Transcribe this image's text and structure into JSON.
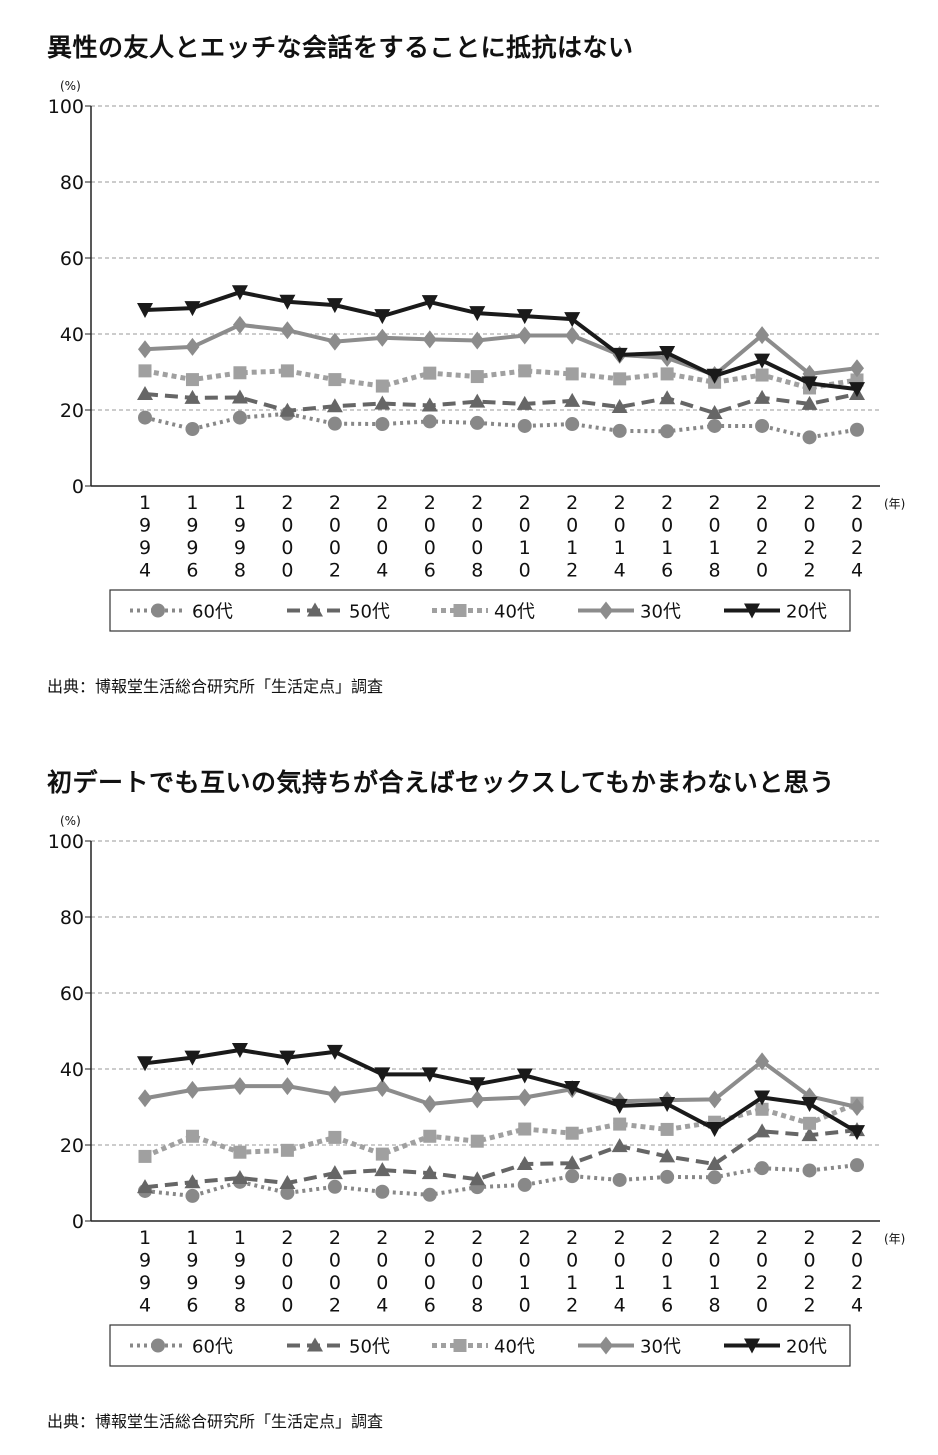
{
  "chart_data": [
    {
      "type": "line",
      "title": "異性の友人とエッチな会話をすることに抵抗はない",
      "ylabel": "(%)",
      "xlabel": "(年)",
      "ylim": [
        0,
        100
      ],
      "yticks": [
        0,
        20,
        40,
        60,
        80,
        100
      ],
      "grid": true,
      "legend": "bottom",
      "categories": [
        "1994",
        "1996",
        "1998",
        "2000",
        "2002",
        "2004",
        "2006",
        "2008",
        "2010",
        "2012",
        "2014",
        "2016",
        "2018",
        "2020",
        "2022",
        "2024"
      ],
      "series": [
        {
          "name": "60代",
          "marker": "circle",
          "style": "dotted",
          "color": "#888888",
          "values": [
            18,
            15,
            18,
            19,
            16.4,
            16.3,
            17,
            16.6,
            15.8,
            16.3,
            14.5,
            14.4,
            15.8,
            15.8,
            12.8,
            14.8
          ]
        },
        {
          "name": "50代",
          "marker": "triangle-up",
          "style": "dashed",
          "color": "#666666",
          "values": [
            24.2,
            23.2,
            23.3,
            19.8,
            21,
            21.7,
            21.2,
            22.2,
            21.6,
            22.4,
            20.8,
            23.1,
            19.2,
            23.2,
            21.6,
            24.2
          ]
        },
        {
          "name": "40代",
          "marker": "square",
          "style": "dotted-thick",
          "color": "#a0a0a0",
          "values": [
            30.3,
            28,
            29.8,
            30.3,
            28,
            26.3,
            29.7,
            28.8,
            30.3,
            29.5,
            28.2,
            29.5,
            27.3,
            29.2,
            25.8,
            27.9
          ]
        },
        {
          "name": "30代",
          "marker": "diamond",
          "style": "solid",
          "color": "#8c8c8c",
          "values": [
            36,
            36.6,
            42.4,
            41,
            38,
            39,
            38.6,
            38.3,
            39.6,
            39.6,
            34.5,
            33.7,
            29.2,
            39.7,
            29.5,
            31
          ]
        },
        {
          "name": "20代",
          "marker": "triangle-down",
          "style": "solid",
          "color": "#1a1a1a",
          "values": [
            46.3,
            46.8,
            51,
            48.5,
            47.6,
            44.7,
            48.4,
            45.5,
            44.7,
            43.9,
            34.5,
            35,
            29,
            33,
            27,
            25.5
          ]
        }
      ],
      "source": "出典：博報堂生活総合研究所「生活定点」調査"
    },
    {
      "type": "line",
      "title": "初デートでも互いの気持ちが合えばセックスしてもかまわないと思う",
      "ylabel": "(%)",
      "xlabel": "(年)",
      "ylim": [
        0,
        100
      ],
      "yticks": [
        0,
        20,
        40,
        60,
        80,
        100
      ],
      "grid": true,
      "legend": "bottom",
      "categories": [
        "1994",
        "1996",
        "1998",
        "2000",
        "2002",
        "2004",
        "2006",
        "2008",
        "2010",
        "2012",
        "2014",
        "2016",
        "2018",
        "2020",
        "2022",
        "2024"
      ],
      "series": [
        {
          "name": "60代",
          "marker": "circle",
          "style": "dotted",
          "color": "#888888",
          "values": [
            7.9,
            6.6,
            10.3,
            7.4,
            9,
            7.7,
            6.9,
            8.9,
            9.5,
            11.8,
            10.8,
            11.6,
            11.5,
            13.9,
            13.3,
            14.7
          ]
        },
        {
          "name": "50代",
          "marker": "triangle-up",
          "style": "dashed",
          "color": "#666666",
          "values": [
            8.9,
            10.2,
            11.3,
            10,
            12.6,
            13.4,
            12.6,
            11,
            15,
            15.2,
            19.7,
            17,
            15,
            23.6,
            22.6,
            23.9
          ]
        },
        {
          "name": "40代",
          "marker": "square",
          "style": "dotted-thick",
          "color": "#a0a0a0",
          "values": [
            17,
            22.3,
            18.1,
            18.6,
            22,
            17.6,
            22.3,
            21,
            24.2,
            23.1,
            25.5,
            24.1,
            26,
            29.4,
            25.7,
            31
          ]
        },
        {
          "name": "30代",
          "marker": "diamond",
          "style": "solid",
          "color": "#8c8c8c",
          "values": [
            32.3,
            34.5,
            35.5,
            35.5,
            33.3,
            35,
            30.8,
            32,
            32.5,
            34.7,
            31.5,
            31.8,
            32,
            42,
            32.8,
            30
          ]
        },
        {
          "name": "20代",
          "marker": "triangle-down",
          "style": "solid",
          "color": "#1a1a1a",
          "values": [
            41.5,
            43,
            45,
            43,
            44.5,
            38.6,
            38.6,
            36,
            38.3,
            35,
            30.3,
            30.8,
            24.2,
            32.5,
            30.8,
            23.4
          ]
        }
      ],
      "source": "出典：博報堂生活総合研究所「生活定点」調査"
    }
  ]
}
